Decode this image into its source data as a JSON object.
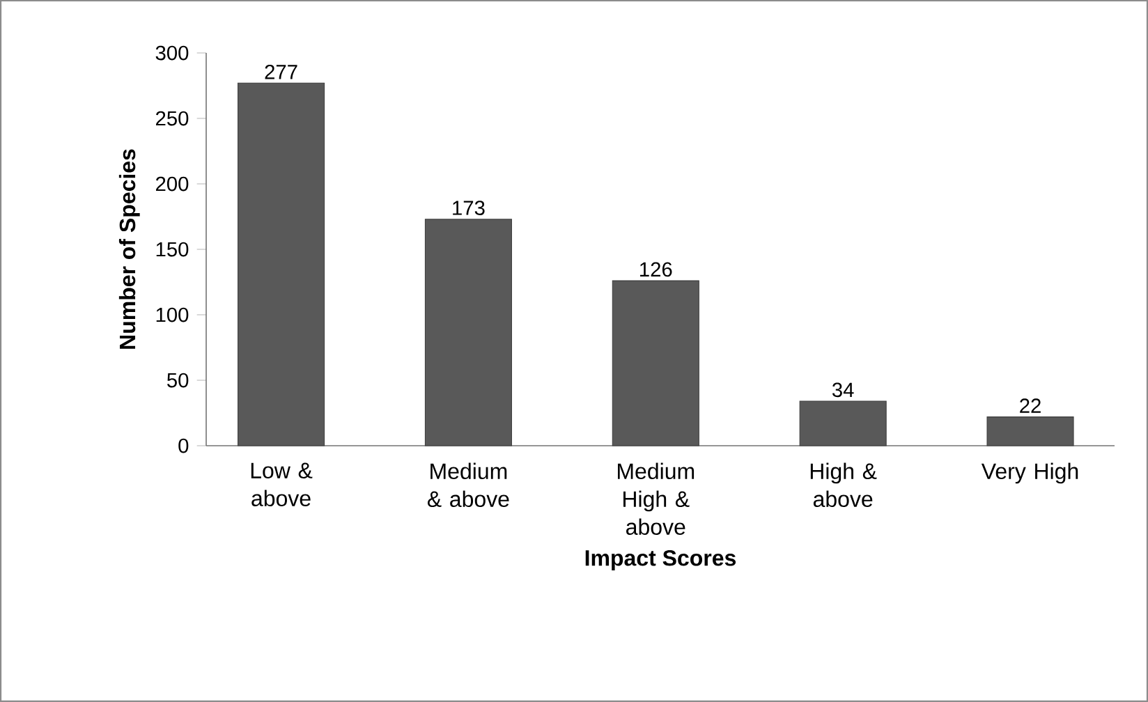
{
  "chart_data": {
    "type": "bar",
    "xlabel": "Impact Scores",
    "ylabel": "Number of Species",
    "categories": [
      "Low & above",
      "Medium & above",
      "Medium High & above",
      "High & above",
      "Very High"
    ],
    "values": [
      277,
      173,
      126,
      34,
      22
    ],
    "color": "#595959",
    "ylim": [
      0,
      300
    ],
    "yticks": [
      0,
      50,
      100,
      150,
      200,
      250,
      300
    ],
    "data_labels": true
  }
}
